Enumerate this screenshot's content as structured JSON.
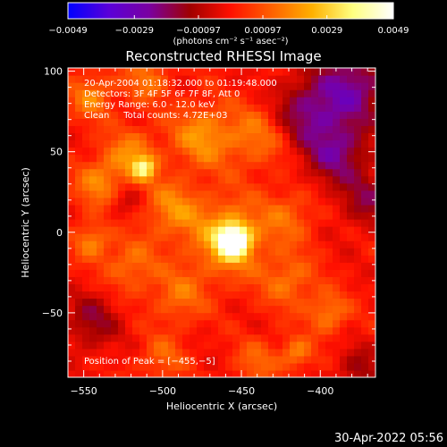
{
  "chart_data": {
    "type": "heatmap",
    "title": "Reconstructed RHESSI Image",
    "xlabel": "Heliocentric X (arcsec)",
    "ylabel": "Heliocentric Y (arcsec)",
    "xlim": [
      -560,
      -365
    ],
    "ylim": [
      -90,
      102
    ],
    "x_ticks": [
      -550,
      -500,
      -450,
      -400
    ],
    "y_ticks": [
      100,
      50,
      0,
      -50
    ],
    "x_tick_labels": [
      "−550",
      "−500",
      "−450",
      "−400"
    ],
    "y_tick_labels": [
      "100",
      "50",
      "0",
      "−50"
    ],
    "colorbar": {
      "min": -0.0049,
      "max": 0.0049,
      "ticks": [
        -0.0049,
        -0.0029,
        -0.00097,
        0.00097,
        0.0029,
        0.0049
      ],
      "tick_labels": [
        "−0.0049",
        "−0.0029",
        "−0.00097",
        "0.00097",
        "0.0029",
        "0.0049"
      ],
      "unit_label": "(photons cm⁻² s⁻¹ asec⁻²)",
      "colors": [
        "#0000ff",
        "#5a00d8",
        "#7a00a0",
        "#a00000",
        "#ff1000",
        "#ff6000",
        "#ffb000",
        "#ffff80",
        "#ffffff"
      ]
    },
    "info_lines": [
      "20-Apr-2004 01:18:32.000 to 01:19:48.000",
      "Detectors: 3F 4F 5F 6F 7F 8F, Att 0",
      "Energy Range: 6.0 - 12.0 keV",
      "Clean     Total counts: 4.72E+03"
    ],
    "peak_label": "Position of Peak = [−455,−5]",
    "peak": {
      "x": -455,
      "y": -5,
      "value": 0.0049
    },
    "sources": [
      {
        "x": -455,
        "y": -5,
        "amp": 1.0,
        "sigma": 7
      },
      {
        "x": -460,
        "y": -3,
        "amp": 0.45,
        "sigma": 18
      },
      {
        "x": -512,
        "y": 40,
        "amp": 0.55,
        "sigma": 5
      },
      {
        "x": -520,
        "y": 48,
        "amp": 0.35,
        "sigma": 12
      },
      {
        "x": -540,
        "y": 30,
        "amp": 0.35,
        "sigma": 11
      },
      {
        "x": -475,
        "y": 60,
        "amp": 0.4,
        "sigma": 14
      },
      {
        "x": -440,
        "y": 60,
        "amp": 0.3,
        "sigma": 14
      },
      {
        "x": -495,
        "y": 15,
        "amp": 0.35,
        "sigma": 12
      },
      {
        "x": -420,
        "y": 10,
        "amp": 0.25,
        "sigma": 12
      },
      {
        "x": -545,
        "y": -5,
        "amp": 0.35,
        "sigma": 8
      },
      {
        "x": -520,
        "y": -20,
        "amp": 0.3,
        "sigma": 12
      },
      {
        "x": -490,
        "y": -40,
        "amp": 0.28,
        "sigma": 12
      },
      {
        "x": -420,
        "y": -30,
        "amp": 0.3,
        "sigma": 12
      },
      {
        "x": -395,
        "y": -50,
        "amp": 0.35,
        "sigma": 9
      },
      {
        "x": -415,
        "y": -75,
        "amp": 0.35,
        "sigma": 7
      },
      {
        "x": -440,
        "y": -80,
        "amp": 0.25,
        "sigma": 10
      },
      {
        "x": -500,
        "y": -78,
        "amp": 0.25,
        "sigma": 10
      },
      {
        "x": -545,
        "y": 85,
        "amp": 0.35,
        "sigma": 10
      },
      {
        "x": -510,
        "y": 95,
        "amp": 0.3,
        "sigma": 10
      },
      {
        "x": -380,
        "y": 90,
        "amp": -0.5,
        "sigma": 16
      },
      {
        "x": -390,
        "y": 50,
        "amp": -0.45,
        "sigma": 14
      },
      {
        "x": -410,
        "y": 75,
        "amp": -0.4,
        "sigma": 14
      },
      {
        "x": -370,
        "y": 20,
        "amp": -0.3,
        "sigma": 12
      },
      {
        "x": -545,
        "y": -55,
        "amp": -0.3,
        "sigma": 12
      },
      {
        "x": -525,
        "y": 20,
        "amp": -0.2,
        "sigma": 8
      },
      {
        "x": -375,
        "y": -85,
        "amp": -0.25,
        "sigma": 10
      }
    ]
  },
  "footer": {
    "timestamp": "30-Apr-2022 05:56"
  }
}
